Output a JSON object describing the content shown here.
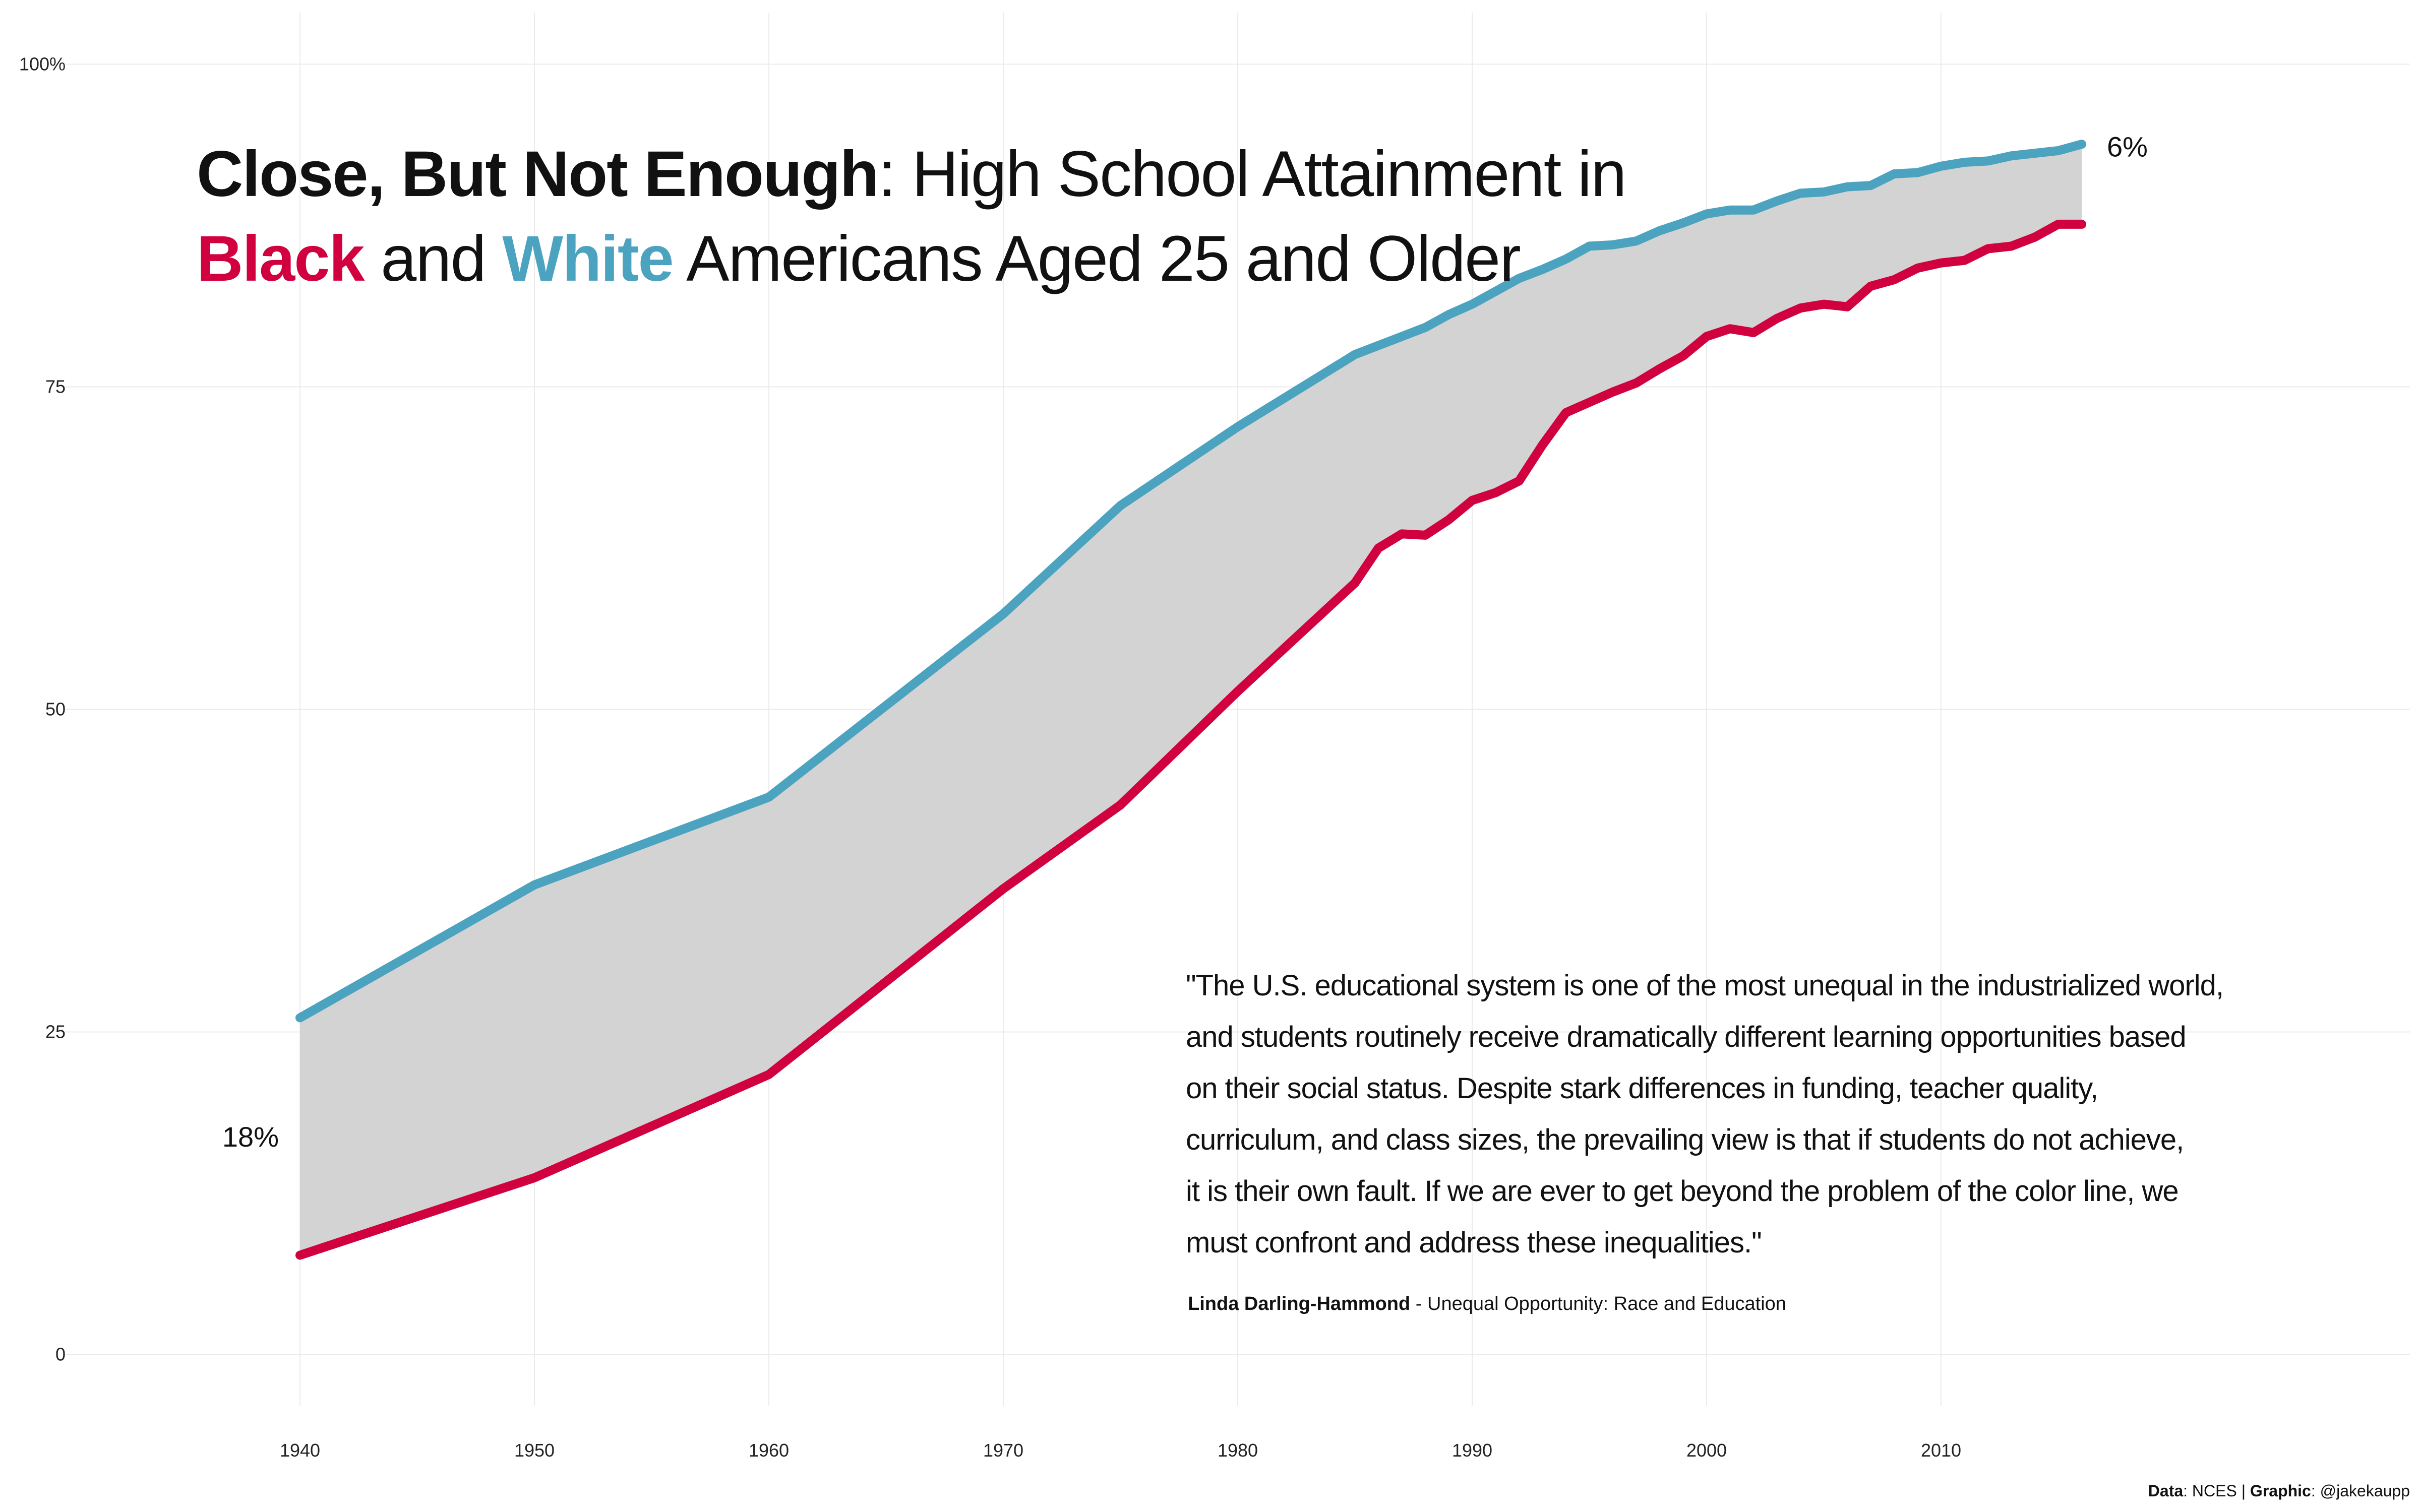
{
  "title": {
    "bold": "Close, But Not Enough",
    "rest": ": High School Attainment in",
    "black_word": "Black",
    "and_word": " and ",
    "white_word": "White",
    "tail": " Americans Aged 25 and Older"
  },
  "quote": {
    "lines": [
      "\"The U.S. educational system is one of the most unequal in the industrialized world,",
      "and students routinely receive dramatically different learning opportunities based",
      "on their social status. Despite stark differences in funding, teacher quality,",
      "curriculum, and class sizes, the prevailing view is that if students do not achieve,",
      "it is their own fault. If we are ever to get beyond the problem of the color line, we",
      "must confront and address these inequalities.\""
    ],
    "author": "Linda Darling-Hammond",
    "source": " - Unequal Opportunity: Race and Education"
  },
  "source_note": {
    "data_label": "Data",
    "data_value": ": NCES | ",
    "graphic_label": "Graphic",
    "graphic_value": ": @jakekaupp"
  },
  "colors": {
    "black_series": "#d1003f",
    "white_series": "#4ba3c0",
    "gap_fill": "#d3d3d3",
    "grid": "#ebebeb"
  },
  "chart_data": {
    "type": "line",
    "title": "Close, But Not Enough: High School Attainment in Black and White Americans Aged 25 and Older",
    "xlabel": "",
    "ylabel": "",
    "xlim": [
      1930,
      2030
    ],
    "ylim": [
      -4,
      104
    ],
    "grid": true,
    "legend": "none (series named by colored title words)",
    "x_ticks": [
      1940,
      1950,
      1960,
      1970,
      1980,
      1990,
      2000,
      2010
    ],
    "y_ticks": [
      0,
      25,
      50,
      75,
      100
    ],
    "y_tick_labels": [
      "0",
      "25",
      "50",
      "75",
      "100%"
    ],
    "gap_labels": [
      {
        "text": "18%",
        "x": 1940
      },
      {
        "text": "6%",
        "x": 2016
      }
    ],
    "series": [
      {
        "name": "White",
        "color": "#4ba3c0",
        "points": [
          [
            1940,
            26.1
          ],
          [
            1950,
            36.4
          ],
          [
            1960,
            43.2
          ],
          [
            1970,
            57.4
          ],
          [
            1975,
            65.8
          ],
          [
            1980,
            71.9
          ],
          [
            1985,
            77.5
          ],
          [
            1986,
            78.2
          ],
          [
            1987,
            78.9
          ],
          [
            1988,
            79.6
          ],
          [
            1989,
            80.6
          ],
          [
            1990,
            81.4
          ],
          [
            1991,
            82.4
          ],
          [
            1992,
            83.4
          ],
          [
            1993,
            84.1
          ],
          [
            1994,
            84.9
          ],
          [
            1995,
            85.9
          ],
          [
            1996,
            86.0
          ],
          [
            1997,
            86.3
          ],
          [
            1998,
            87.1
          ],
          [
            1999,
            87.7
          ],
          [
            2000,
            88.4
          ],
          [
            2001,
            88.7
          ],
          [
            2002,
            88.7
          ],
          [
            2003,
            89.4
          ],
          [
            2004,
            90.0
          ],
          [
            2005,
            90.1
          ],
          [
            2006,
            90.5
          ],
          [
            2007,
            90.6
          ],
          [
            2008,
            91.5
          ],
          [
            2009,
            91.6
          ],
          [
            2010,
            92.1
          ],
          [
            2011,
            92.4
          ],
          [
            2012,
            92.5
          ],
          [
            2013,
            92.9
          ],
          [
            2014,
            93.1
          ],
          [
            2015,
            93.3
          ],
          [
            2016,
            93.8
          ]
        ]
      },
      {
        "name": "Black",
        "color": "#d1003f",
        "points": [
          [
            1940,
            7.7
          ],
          [
            1950,
            13.7
          ],
          [
            1960,
            21.7
          ],
          [
            1970,
            36.1
          ],
          [
            1975,
            42.6
          ],
          [
            1980,
            51.4
          ],
          [
            1985,
            59.8
          ],
          [
            1986,
            62.5
          ],
          [
            1987,
            63.6
          ],
          [
            1988,
            63.5
          ],
          [
            1989,
            64.7
          ],
          [
            1990,
            66.2
          ],
          [
            1991,
            66.8
          ],
          [
            1992,
            67.7
          ],
          [
            1993,
            70.5
          ],
          [
            1994,
            73.0
          ],
          [
            1995,
            73.8
          ],
          [
            1996,
            74.6
          ],
          [
            1997,
            75.3
          ],
          [
            1998,
            76.4
          ],
          [
            1999,
            77.4
          ],
          [
            2000,
            78.9
          ],
          [
            2001,
            79.5
          ],
          [
            2002,
            79.2
          ],
          [
            2003,
            80.3
          ],
          [
            2004,
            81.1
          ],
          [
            2005,
            81.4
          ],
          [
            2006,
            81.2
          ],
          [
            2007,
            82.8
          ],
          [
            2008,
            83.3
          ],
          [
            2009,
            84.2
          ],
          [
            2010,
            84.6
          ],
          [
            2011,
            84.8
          ],
          [
            2012,
            85.7
          ],
          [
            2013,
            85.9
          ],
          [
            2014,
            86.6
          ],
          [
            2015,
            87.6
          ],
          [
            2016,
            87.6
          ]
        ]
      }
    ]
  }
}
